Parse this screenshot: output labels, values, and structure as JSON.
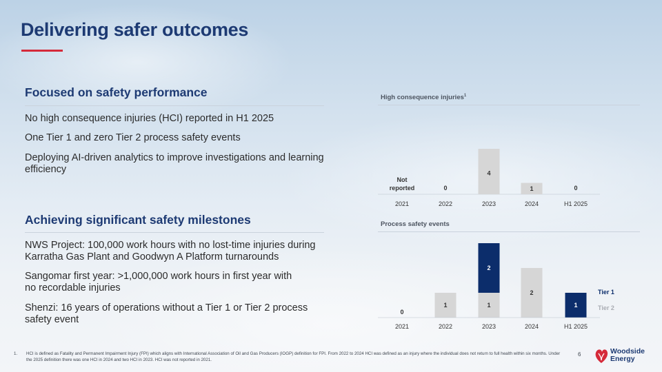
{
  "header": {
    "title": "Delivering safer outcomes"
  },
  "section1": {
    "heading": "Focused on safety performance",
    "bullets": [
      "No high consequence injuries (HCI) reported in H1 2025",
      "One Tier 1 and zero Tier 2 process safety events",
      "Deploying AI-driven analytics to improve investigations and learning",
      "efficiency"
    ]
  },
  "section2": {
    "heading": "Achieving significant safety milestones",
    "bullets": [
      "NWS Project: 100,000 work hours with no lost-time injuries during",
      "Karratha Gas Plant and Goodwyn A Platform turnarounds",
      "Sangomar first year: >1,000,000 work hours in first year with",
      "no recordable injuries",
      "Shenzi: 16 years of operations without a Tier 1 or Tier 2 process",
      "safety event"
    ]
  },
  "chart_data": [
    {
      "type": "bar",
      "title": "High consequence injuries",
      "title_footnote": "1",
      "categories": [
        "2021",
        "2022",
        "2023",
        "2024",
        "H1 2025"
      ],
      "values": [
        null,
        0,
        4,
        1,
        0
      ],
      "labels": [
        "Not reported",
        "0",
        "4",
        "1",
        "0"
      ],
      "not_reported_line1": "Not",
      "not_reported_line2": "reported",
      "ylim": [
        0,
        4
      ],
      "colors": {
        "bar": "#d6d6d6"
      }
    },
    {
      "type": "bar",
      "stacked": true,
      "title": "Process safety events",
      "categories": [
        "2021",
        "2022",
        "2023",
        "2024",
        "H1 2025"
      ],
      "series": [
        {
          "name": "Tier 2",
          "values": [
            0,
            1,
            1,
            2,
            0
          ],
          "color": "#d6d6d6"
        },
        {
          "name": "Tier 1",
          "values": [
            0,
            0,
            2,
            0,
            1
          ],
          "color": "#0c2d6b"
        }
      ],
      "zero_label": "0",
      "legend": {
        "tier1": "Tier 1",
        "tier2": "Tier 2"
      },
      "ylim": [
        0,
        3
      ]
    }
  ],
  "footer": {
    "footnote_number": "1.",
    "footnote_text": "HCI is defined as Fatality and Permanent Impairment Injury (FPI) which aligns with International Association of Oil and Gas Producers (IOGP) definition for FPI. From 2022 to 2024 HCI was defined as an injury where the individual does not return to full health within six months. Under the 2025 definition there was one HCI in 2024 and two HCI in 2023. HCI was not reported in 2021.",
    "page_number": "6",
    "logo_line1": "Woodside",
    "logo_line2": "Energy"
  },
  "colors": {
    "accent_blue": "#1d3a73",
    "accent_red": "#d52a3a",
    "navy": "#0c2d6b",
    "grey_bar": "#d6d6d6"
  }
}
